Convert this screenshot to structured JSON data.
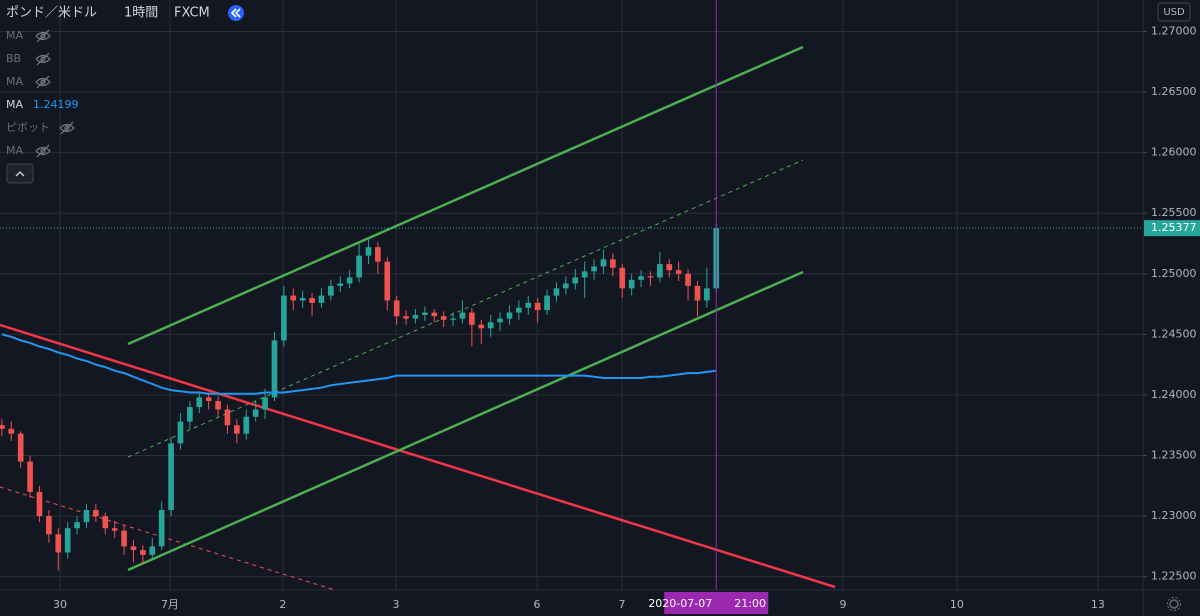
{
  "chart_data": {
    "type": "candlestick",
    "title": "ポンド／米ドル",
    "interval": "1時間",
    "source": "FXCM",
    "currency": "USD",
    "hidden_indicators": [
      "MA",
      "BB",
      "MA",
      "ピボット",
      "MA"
    ],
    "series": [
      {
        "name": "MA",
        "color": "#2196f3",
        "value_label": "1.24199",
        "values": [
          1.245,
          1.2448,
          1.2445,
          1.2443,
          1.244,
          1.2438,
          1.2435,
          1.2433,
          1.243,
          1.2428,
          1.2425,
          1.2423,
          1.242,
          1.2418,
          1.2415,
          1.2412,
          1.2409,
          1.2406,
          1.2404,
          1.2403,
          1.2402,
          1.2402,
          1.2401,
          1.2401,
          1.2401,
          1.2401,
          1.2401,
          1.2401,
          1.2402,
          1.2402,
          1.2402,
          1.2403,
          1.2404,
          1.2405,
          1.2406,
          1.2408,
          1.2409,
          1.241,
          1.2411,
          1.2412,
          1.2413,
          1.2414,
          1.2416,
          1.2416,
          1.2416,
          1.2416,
          1.2416,
          1.2416,
          1.2416,
          1.2416,
          1.2416,
          1.2416,
          1.2416,
          1.2416,
          1.2416,
          1.2416,
          1.2416,
          1.2416,
          1.2416,
          1.2416,
          1.2416,
          1.2416,
          1.2416,
          1.2415,
          1.2414,
          1.2414,
          1.2414,
          1.2414,
          1.2414,
          1.2415,
          1.2415,
          1.2416,
          1.2417,
          1.2418,
          1.2418,
          1.2419,
          1.24199
        ]
      }
    ],
    "up_color": "#26a69a",
    "down_color": "#ef5350",
    "ohlc": [
      [
        1.2375,
        1.238,
        1.2366,
        1.2372
      ],
      [
        1.2372,
        1.2378,
        1.2362,
        1.2368
      ],
      [
        1.2368,
        1.237,
        1.234,
        1.2345
      ],
      [
        1.2345,
        1.235,
        1.2315,
        1.232
      ],
      [
        1.232,
        1.2325,
        1.2295,
        1.23
      ],
      [
        1.23,
        1.2305,
        1.2278,
        1.2285
      ],
      [
        1.2285,
        1.229,
        1.2255,
        1.227
      ],
      [
        1.227,
        1.2295,
        1.2265,
        1.229
      ],
      [
        1.229,
        1.23,
        1.2285,
        1.2295
      ],
      [
        1.2295,
        1.231,
        1.229,
        1.2305
      ],
      [
        1.2305,
        1.231,
        1.2295,
        1.23
      ],
      [
        1.23,
        1.2303,
        1.2285,
        1.229
      ],
      [
        1.229,
        1.2296,
        1.2282,
        1.2288
      ],
      [
        1.2288,
        1.2292,
        1.2268,
        1.2275
      ],
      [
        1.2275,
        1.228,
        1.2262,
        1.2272
      ],
      [
        1.2272,
        1.2276,
        1.226,
        1.2268
      ],
      [
        1.2268,
        1.2282,
        1.2264,
        1.2275
      ],
      [
        1.2275,
        1.2312,
        1.2272,
        1.2305
      ],
      [
        1.2305,
        1.2365,
        1.23,
        1.236
      ],
      [
        1.236,
        1.2385,
        1.2355,
        1.2378
      ],
      [
        1.2378,
        1.2395,
        1.2372,
        1.239
      ],
      [
        1.239,
        1.2403,
        1.2385,
        1.2398
      ],
      [
        1.2398,
        1.2402,
        1.2388,
        1.2395
      ],
      [
        1.2395,
        1.2399,
        1.2382,
        1.2388
      ],
      [
        1.2388,
        1.2392,
        1.2368,
        1.2375
      ],
      [
        1.2375,
        1.238,
        1.236,
        1.2368
      ],
      [
        1.2368,
        1.2388,
        1.2363,
        1.2382
      ],
      [
        1.2382,
        1.2395,
        1.2378,
        1.2388
      ],
      [
        1.2388,
        1.2405,
        1.238,
        1.2398
      ],
      [
        1.2398,
        1.2452,
        1.2395,
        1.2445
      ],
      [
        1.2445,
        1.249,
        1.244,
        1.2482
      ],
      [
        1.2482,
        1.2488,
        1.247,
        1.2478
      ],
      [
        1.2478,
        1.2486,
        1.2472,
        1.248
      ],
      [
        1.248,
        1.2484,
        1.2465,
        1.2476
      ],
      [
        1.2476,
        1.2488,
        1.2472,
        1.2482
      ],
      [
        1.2482,
        1.2495,
        1.2478,
        1.249
      ],
      [
        1.249,
        1.2498,
        1.2485,
        1.2492
      ],
      [
        1.2492,
        1.2503,
        1.2488,
        1.2497
      ],
      [
        1.2497,
        1.2525,
        1.2493,
        1.2515
      ],
      [
        1.2515,
        1.253,
        1.2508,
        1.2522
      ],
      [
        1.2522,
        1.2526,
        1.25,
        1.251
      ],
      [
        1.251,
        1.2514,
        1.247,
        1.2478
      ],
      [
        1.2478,
        1.2482,
        1.2458,
        1.2465
      ],
      [
        1.2465,
        1.247,
        1.2458,
        1.2463
      ],
      [
        1.2463,
        1.2471,
        1.2459,
        1.2466
      ],
      [
        1.2466,
        1.2473,
        1.2461,
        1.2468
      ],
      [
        1.2468,
        1.2471,
        1.246,
        1.2465
      ],
      [
        1.2465,
        1.2469,
        1.2456,
        1.2462
      ],
      [
        1.2462,
        1.2468,
        1.2457,
        1.2463
      ],
      [
        1.2463,
        1.2478,
        1.2459,
        1.2468
      ],
      [
        1.2468,
        1.2472,
        1.244,
        1.2458
      ],
      [
        1.2458,
        1.2462,
        1.2442,
        1.2455
      ],
      [
        1.2455,
        1.2466,
        1.2448,
        1.246
      ],
      [
        1.246,
        1.2468,
        1.2453,
        1.2463
      ],
      [
        1.2463,
        1.2474,
        1.2458,
        1.2468
      ],
      [
        1.2468,
        1.2478,
        1.2462,
        1.2472
      ],
      [
        1.2472,
        1.2482,
        1.2466,
        1.2476
      ],
      [
        1.2476,
        1.248,
        1.246,
        1.247
      ],
      [
        1.247,
        1.2487,
        1.2466,
        1.2482
      ],
      [
        1.2482,
        1.2493,
        1.2477,
        1.2488
      ],
      [
        1.2488,
        1.2498,
        1.2483,
        1.2492
      ],
      [
        1.2492,
        1.2504,
        1.2487,
        1.2497
      ],
      [
        1.2497,
        1.251,
        1.248,
        1.2502
      ],
      [
        1.2502,
        1.2512,
        1.2495,
        1.2506
      ],
      [
        1.2506,
        1.252,
        1.25,
        1.2512
      ],
      [
        1.2512,
        1.2517,
        1.2498,
        1.2505
      ],
      [
        1.2505,
        1.2508,
        1.248,
        1.2488
      ],
      [
        1.2488,
        1.25,
        1.2482,
        1.2495
      ],
      [
        1.2495,
        1.2503,
        1.2489,
        1.2498
      ],
      [
        1.2498,
        1.2502,
        1.249,
        1.2497
      ],
      [
        1.2497,
        1.2518,
        1.2493,
        1.2508
      ],
      [
        1.2508,
        1.2512,
        1.2497,
        1.2503
      ],
      [
        1.2503,
        1.251,
        1.2494,
        1.25
      ],
      [
        1.25,
        1.2504,
        1.2478,
        1.249
      ],
      [
        1.249,
        1.2494,
        1.2465,
        1.2478
      ],
      [
        1.2478,
        1.2505,
        1.2472,
        1.2488
      ],
      [
        1.2488,
        1.2542,
        1.2485,
        1.25377
      ]
    ],
    "last_price": 1.25377,
    "crosshair": {
      "date": "2020-07-07",
      "time": "21:00"
    },
    "xlim": [
      -0.2,
      121.4
    ],
    "xticks": [
      {
        "value": 6.18,
        "label": "30"
      },
      {
        "value": 17.88,
        "label": "7月"
      },
      {
        "value": 29.9,
        "label": "2"
      },
      {
        "value": 41.93,
        "label": "3"
      },
      {
        "value": 56.93,
        "label": "6"
      },
      {
        "value": 65.97,
        "label": "7"
      },
      {
        "value": 89.48,
        "label": "9"
      },
      {
        "value": 101.6,
        "label": "10"
      },
      {
        "value": 116.6,
        "label": "13"
      }
    ],
    "ylim": [
      1.2239,
      1.2726
    ],
    "yticks": [
      {
        "value": 1.27,
        "label": "1.27000"
      },
      {
        "value": 1.265,
        "label": "1.26500"
      },
      {
        "value": 1.26,
        "label": "1.26000"
      },
      {
        "value": 1.255,
        "label": "1.25500"
      },
      {
        "value": 1.25,
        "label": "1.25000"
      },
      {
        "value": 1.245,
        "label": "1.24500"
      },
      {
        "value": 1.24,
        "label": "1.24000"
      },
      {
        "value": 1.235,
        "label": "1.23500"
      },
      {
        "value": 1.23,
        "label": "1.23000"
      },
      {
        "value": 1.225,
        "label": "1.22500"
      }
    ],
    "grid": true
  }
}
